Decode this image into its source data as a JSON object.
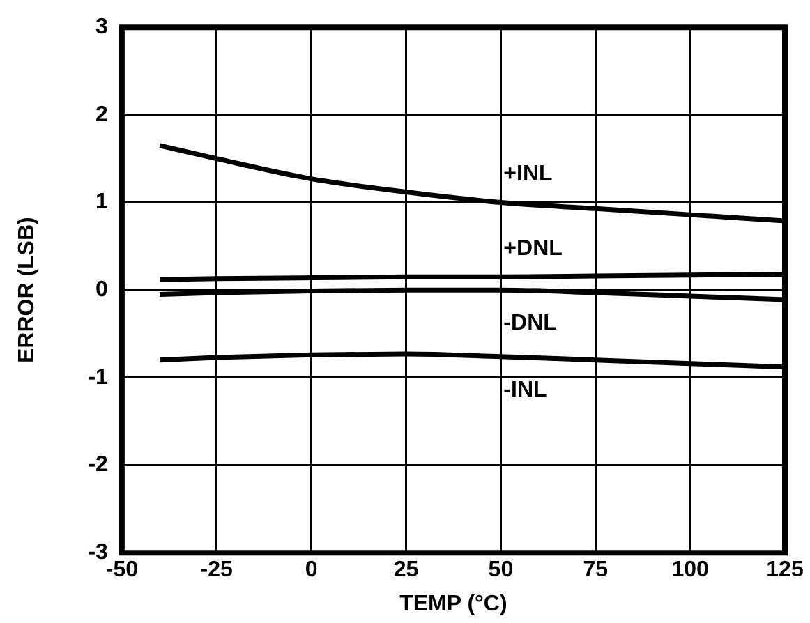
{
  "chart_data": {
    "type": "line",
    "xlabel": "TEMP (°C)",
    "ylabel": "ERROR (LSB)",
    "x": [
      -40,
      -25,
      0,
      25,
      50,
      75,
      100,
      125
    ],
    "series": [
      {
        "name": "+INL",
        "color": "#000000",
        "values": [
          1.65,
          1.5,
          1.27,
          1.12,
          1.0,
          0.93,
          0.86,
          0.79
        ]
      },
      {
        "name": "+DNL",
        "color": "#000000",
        "values": [
          0.12,
          0.13,
          0.14,
          0.15,
          0.15,
          0.16,
          0.17,
          0.18
        ]
      },
      {
        "name": "-DNL",
        "color": "#000000",
        "values": [
          -0.05,
          -0.03,
          -0.01,
          0,
          0,
          -0.03,
          -0.07,
          -0.11
        ]
      },
      {
        "name": "-INL",
        "color": "#000000",
        "values": [
          -0.8,
          -0.77,
          -0.74,
          -0.73,
          -0.76,
          -0.8,
          -0.84,
          -0.88
        ]
      }
    ],
    "xlim": [
      -50,
      125
    ],
    "xticks": [
      -50,
      -25,
      0,
      25,
      50,
      75,
      100,
      125
    ],
    "ylim": [
      -3,
      3
    ],
    "yticks": [
      -3,
      -2,
      -1,
      0,
      1,
      2,
      3
    ],
    "grid": true,
    "legend": false,
    "marker": "none",
    "line_style": "solid"
  }
}
